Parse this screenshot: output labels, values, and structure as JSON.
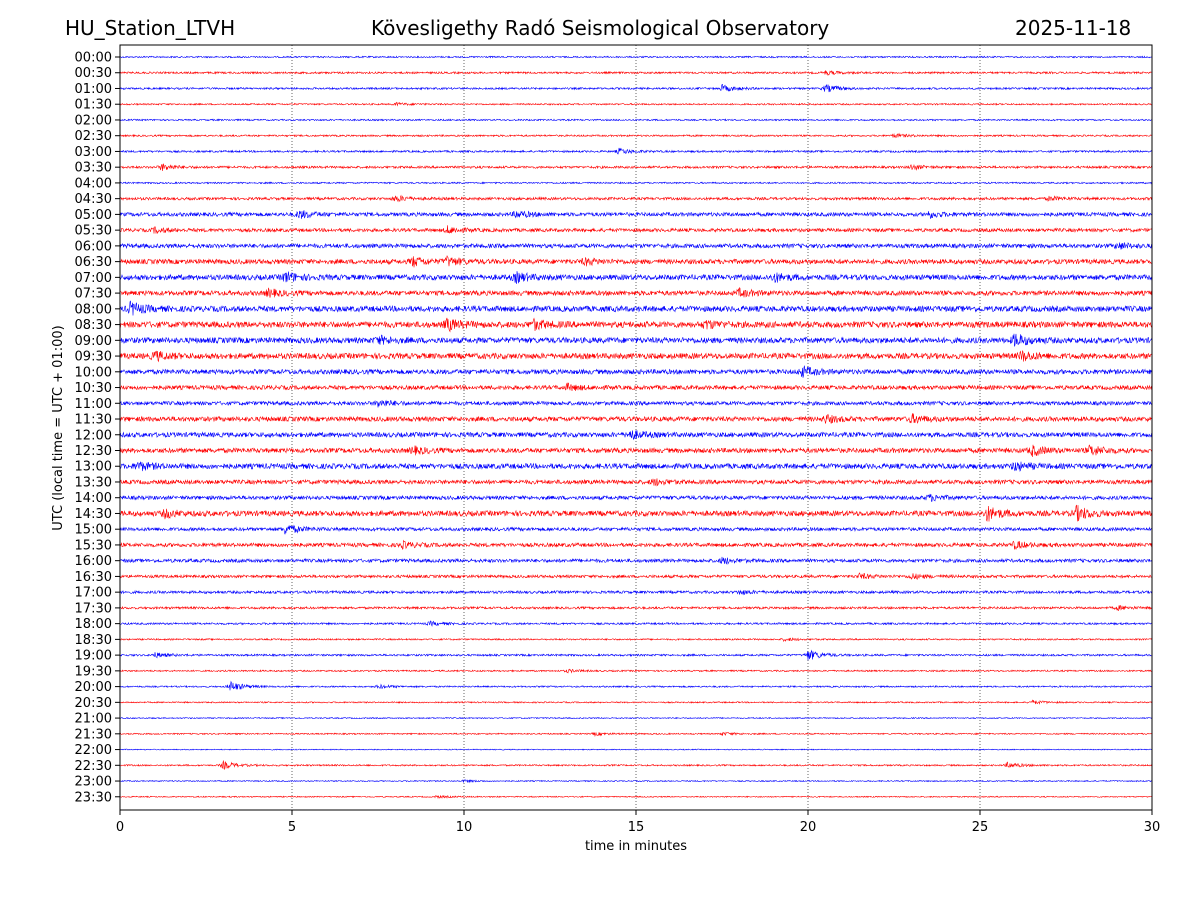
{
  "header": {
    "station": "HU_Station_LTVH",
    "observatory": "Kövesligethy Radó Seismological Observatory",
    "date": "2025-11-18"
  },
  "chart_data": {
    "type": "line",
    "title": "Kövesligethy Radó Seismological Observatory",
    "xlabel": "time in minutes",
    "ylabel": "UTC (local time = UTC + 01:00)",
    "xlim": [
      0,
      30
    ],
    "xticks": [
      "0",
      "5",
      "10",
      "15",
      "20",
      "25",
      "30"
    ],
    "grid": "vertical dotted at 5-minute ticks",
    "colors": [
      "#0000ff",
      "#ff0000"
    ],
    "rows": [
      {
        "label": "00:00",
        "noise": 0.08,
        "bursts": []
      },
      {
        "label": "00:30",
        "noise": 0.1,
        "bursts": [
          [
            20.5,
            0.2
          ]
        ]
      },
      {
        "label": "01:00",
        "noise": 0.1,
        "bursts": [
          [
            17.5,
            0.35
          ],
          [
            20.5,
            0.4
          ]
        ]
      },
      {
        "label": "01:30",
        "noise": 0.08,
        "bursts": [
          [
            8,
            0.15
          ]
        ]
      },
      {
        "label": "02:00",
        "noise": 0.08,
        "bursts": []
      },
      {
        "label": "02:30",
        "noise": 0.09,
        "bursts": [
          [
            22.5,
            0.2
          ]
        ]
      },
      {
        "label": "03:00",
        "noise": 0.1,
        "bursts": [
          [
            14.5,
            0.3
          ]
        ]
      },
      {
        "label": "03:30",
        "noise": 0.12,
        "bursts": [
          [
            1.2,
            0.35
          ],
          [
            23,
            0.25
          ]
        ]
      },
      {
        "label": "04:00",
        "noise": 0.08,
        "bursts": []
      },
      {
        "label": "04:30",
        "noise": 0.14,
        "bursts": [
          [
            8,
            0.3
          ],
          [
            27,
            0.2
          ]
        ]
      },
      {
        "label": "05:00",
        "noise": 0.2,
        "bursts": [
          [
            5.2,
            0.4
          ],
          [
            11.5,
            0.35
          ],
          [
            23.5,
            0.3
          ]
        ]
      },
      {
        "label": "05:30",
        "noise": 0.18,
        "bursts": [
          [
            1,
            0.25
          ],
          [
            9.5,
            0.35
          ]
        ]
      },
      {
        "label": "06:00",
        "noise": 0.22,
        "bursts": [
          [
            29,
            0.3
          ]
        ]
      },
      {
        "label": "06:30",
        "noise": 0.25,
        "bursts": [
          [
            8.5,
            0.45
          ],
          [
            9.5,
            0.4
          ],
          [
            13.5,
            0.3
          ]
        ]
      },
      {
        "label": "07:00",
        "noise": 0.28,
        "bursts": [
          [
            4.8,
            0.5
          ],
          [
            11.5,
            0.45
          ],
          [
            19,
            0.4
          ]
        ]
      },
      {
        "label": "07:30",
        "noise": 0.25,
        "bursts": [
          [
            4.3,
            0.35
          ],
          [
            18,
            0.35
          ]
        ]
      },
      {
        "label": "08:00",
        "noise": 0.3,
        "bursts": [
          [
            0.3,
            0.6
          ]
        ]
      },
      {
        "label": "08:30",
        "noise": 0.32,
        "bursts": [
          [
            9.5,
            0.55
          ],
          [
            12,
            0.45
          ],
          [
            17,
            0.35
          ]
        ]
      },
      {
        "label": "09:00",
        "noise": 0.3,
        "bursts": [
          [
            7.5,
            0.35
          ],
          [
            26,
            0.6
          ]
        ]
      },
      {
        "label": "09:30",
        "noise": 0.3,
        "bursts": [
          [
            1,
            0.4
          ],
          [
            26.2,
            0.45
          ]
        ]
      },
      {
        "label": "10:00",
        "noise": 0.25,
        "bursts": [
          [
            19.8,
            0.5
          ]
        ]
      },
      {
        "label": "10:30",
        "noise": 0.22,
        "bursts": [
          [
            13,
            0.3
          ]
        ]
      },
      {
        "label": "11:00",
        "noise": 0.2,
        "bursts": [
          [
            7.5,
            0.35
          ]
        ]
      },
      {
        "label": "11:30",
        "noise": 0.25,
        "bursts": [
          [
            23,
            0.4
          ],
          [
            20.5,
            0.35
          ]
        ]
      },
      {
        "label": "12:00",
        "noise": 0.25,
        "bursts": [
          [
            14.8,
            0.45
          ]
        ]
      },
      {
        "label": "12:30",
        "noise": 0.25,
        "bursts": [
          [
            26.5,
            0.5
          ],
          [
            28.2,
            0.5
          ],
          [
            8.5,
            0.35
          ]
        ]
      },
      {
        "label": "13:00",
        "noise": 0.28,
        "bursts": [
          [
            0.5,
            0.4
          ],
          [
            26,
            0.4
          ]
        ]
      },
      {
        "label": "13:30",
        "noise": 0.22,
        "bursts": [
          [
            15.5,
            0.3
          ]
        ]
      },
      {
        "label": "14:00",
        "noise": 0.2,
        "bursts": [
          [
            23.5,
            0.3
          ]
        ]
      },
      {
        "label": "14:30",
        "noise": 0.28,
        "bursts": [
          [
            25.2,
            0.7
          ],
          [
            27.8,
            0.7
          ],
          [
            1.3,
            0.35
          ]
        ]
      },
      {
        "label": "15:00",
        "noise": 0.18,
        "bursts": [
          [
            4.8,
            0.5
          ]
        ]
      },
      {
        "label": "15:30",
        "noise": 0.2,
        "bursts": [
          [
            8.2,
            0.3
          ],
          [
            26,
            0.35
          ]
        ]
      },
      {
        "label": "16:00",
        "noise": 0.18,
        "bursts": [
          [
            17.5,
            0.3
          ]
        ]
      },
      {
        "label": "16:30",
        "noise": 0.15,
        "bursts": [
          [
            21.5,
            0.25
          ],
          [
            23,
            0.25
          ]
        ]
      },
      {
        "label": "17:00",
        "noise": 0.14,
        "bursts": [
          [
            18,
            0.2
          ]
        ]
      },
      {
        "label": "17:30",
        "noise": 0.12,
        "bursts": [
          [
            29,
            0.2
          ]
        ]
      },
      {
        "label": "18:00",
        "noise": 0.1,
        "bursts": [
          [
            9,
            0.2
          ]
        ]
      },
      {
        "label": "18:30",
        "noise": 0.08,
        "bursts": [
          [
            19.3,
            0.15
          ]
        ]
      },
      {
        "label": "19:00",
        "noise": 0.1,
        "bursts": [
          [
            20,
            0.55
          ],
          [
            1,
            0.25
          ]
        ]
      },
      {
        "label": "19:30",
        "noise": 0.08,
        "bursts": [
          [
            13,
            0.15
          ]
        ]
      },
      {
        "label": "20:00",
        "noise": 0.08,
        "bursts": [
          [
            3.2,
            0.55
          ],
          [
            7.5,
            0.2
          ]
        ]
      },
      {
        "label": "20:30",
        "noise": 0.07,
        "bursts": [
          [
            26.5,
            0.2
          ]
        ]
      },
      {
        "label": "21:00",
        "noise": 0.06,
        "bursts": []
      },
      {
        "label": "21:30",
        "noise": 0.07,
        "bursts": [
          [
            13.8,
            0.15
          ],
          [
            17.5,
            0.15
          ]
        ]
      },
      {
        "label": "22:00",
        "noise": 0.05,
        "bursts": []
      },
      {
        "label": "22:30",
        "noise": 0.08,
        "bursts": [
          [
            3,
            0.4
          ],
          [
            25.8,
            0.3
          ]
        ]
      },
      {
        "label": "23:00",
        "noise": 0.06,
        "bursts": [
          [
            10,
            0.12
          ]
        ]
      },
      {
        "label": "23:30",
        "noise": 0.06,
        "bursts": [
          [
            9.2,
            0.12
          ]
        ]
      }
    ]
  }
}
